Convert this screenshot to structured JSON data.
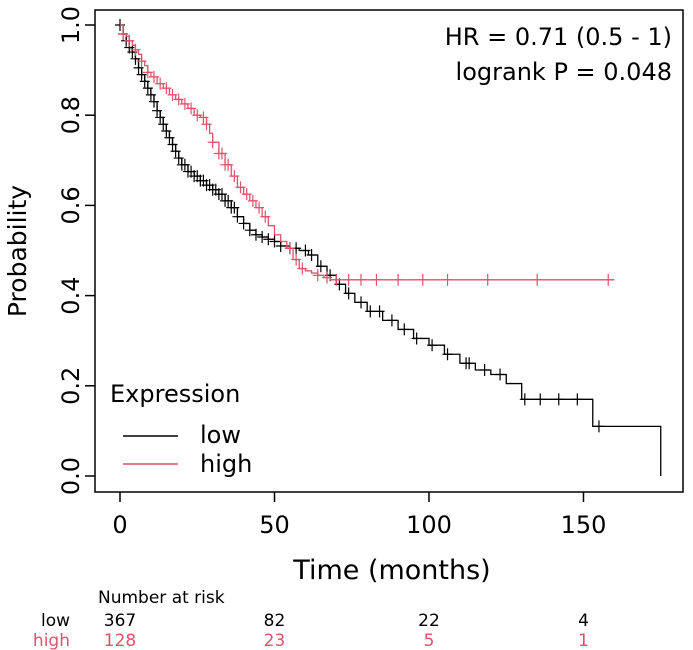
{
  "chart_data": {
    "type": "line",
    "subtype": "kaplan-meier",
    "title": "",
    "xlabel": "Time (months)",
    "ylabel": "Probability",
    "xlim": [
      0,
      175
    ],
    "ylim": [
      0,
      1
    ],
    "x_ticks": [
      "0",
      "50",
      "100",
      "150"
    ],
    "y_ticks": [
      "0.0",
      "0.2",
      "0.4",
      "0.6",
      "0.8",
      "1.0"
    ],
    "annotations": [
      "HR = 0.71 (0.5 - 1)",
      "logrank P = 0.048"
    ],
    "legend": {
      "title": "Expression",
      "position": "bottom-left",
      "entries": [
        "low",
        "high"
      ]
    },
    "series": [
      {
        "name": "low",
        "color": "#000000",
        "x": [
          0,
          1,
          2,
          3,
          4,
          5,
          6,
          7,
          8,
          9,
          10,
          11,
          12,
          13,
          14,
          15,
          16,
          17,
          18,
          19,
          20,
          22,
          24,
          26,
          28,
          30,
          32,
          34,
          36,
          38,
          40,
          42,
          44,
          46,
          48,
          50,
          52,
          55,
          58,
          61,
          64,
          67,
          70,
          73,
          76,
          80,
          85,
          90,
          95,
          100,
          105,
          110,
          115,
          120,
          125,
          130,
          135,
          140,
          145,
          150,
          153,
          160,
          165,
          175
        ],
        "y": [
          1.0,
          0.98,
          0.965,
          0.95,
          0.94,
          0.925,
          0.905,
          0.89,
          0.875,
          0.86,
          0.845,
          0.83,
          0.81,
          0.795,
          0.78,
          0.765,
          0.75,
          0.735,
          0.72,
          0.705,
          0.69,
          0.675,
          0.665,
          0.655,
          0.645,
          0.635,
          0.625,
          0.61,
          0.595,
          0.575,
          0.56,
          0.545,
          0.535,
          0.53,
          0.525,
          0.52,
          0.51,
          0.505,
          0.5,
          0.49,
          0.465,
          0.445,
          0.425,
          0.405,
          0.385,
          0.365,
          0.345,
          0.325,
          0.305,
          0.29,
          0.27,
          0.25,
          0.235,
          0.225,
          0.205,
          0.17,
          0.17,
          0.17,
          0.17,
          0.17,
          0.11,
          0.11,
          0.11,
          0.0
        ],
        "censor_x": [
          0,
          1,
          2,
          3,
          4,
          5,
          6,
          7,
          8,
          9,
          10,
          11,
          12,
          13,
          14,
          15,
          16,
          17,
          18,
          19,
          20,
          21,
          22,
          23,
          24,
          25,
          26,
          27,
          28,
          29,
          30,
          31,
          32,
          33,
          34,
          35,
          36,
          37,
          38,
          40,
          42,
          44,
          46,
          48,
          50,
          52,
          55,
          57,
          60,
          62,
          65,
          68,
          71,
          74,
          78,
          81,
          84,
          88,
          92,
          96,
          101,
          106,
          112,
          113,
          118,
          123,
          131,
          136,
          142,
          148,
          155
        ]
      },
      {
        "name": "high",
        "color": "#df536b",
        "x": [
          0,
          1,
          2,
          3,
          4,
          5,
          6,
          7,
          8,
          9,
          10,
          12,
          14,
          16,
          18,
          20,
          22,
          24,
          26,
          28,
          29,
          30,
          32,
          34,
          36,
          38,
          40,
          42,
          44,
          46,
          48,
          50,
          52,
          54,
          56,
          58,
          60,
          62,
          64,
          66,
          68,
          70,
          160
        ],
        "y": [
          1.0,
          0.98,
          0.975,
          0.965,
          0.955,
          0.945,
          0.935,
          0.92,
          0.91,
          0.895,
          0.885,
          0.87,
          0.86,
          0.845,
          0.835,
          0.825,
          0.815,
          0.8,
          0.795,
          0.78,
          0.76,
          0.74,
          0.715,
          0.69,
          0.665,
          0.64,
          0.625,
          0.61,
          0.595,
          0.575,
          0.555,
          0.535,
          0.52,
          0.505,
          0.48,
          0.46,
          0.455,
          0.45,
          0.445,
          0.44,
          0.435,
          0.435,
          0.435
        ],
        "censor_x": [
          1,
          3,
          5,
          7,
          9,
          11,
          13,
          15,
          17,
          19,
          21,
          23,
          25,
          27,
          28,
          30,
          32,
          33,
          34,
          35,
          37,
          39,
          41,
          43,
          45,
          47,
          55,
          57,
          59,
          64,
          67,
          70,
          74,
          78,
          83,
          90,
          98,
          106,
          119,
          135,
          158
        ]
      }
    ],
    "risk_table": {
      "header": "Number at risk",
      "times": [
        0,
        50,
        100,
        150
      ],
      "rows": [
        {
          "label": "low",
          "color": "#000000",
          "values": [
            "367",
            "82",
            "22",
            "4"
          ]
        },
        {
          "label": "high",
          "color": "#df536b",
          "values": [
            "128",
            "23",
            "5",
            "1"
          ]
        }
      ]
    }
  }
}
